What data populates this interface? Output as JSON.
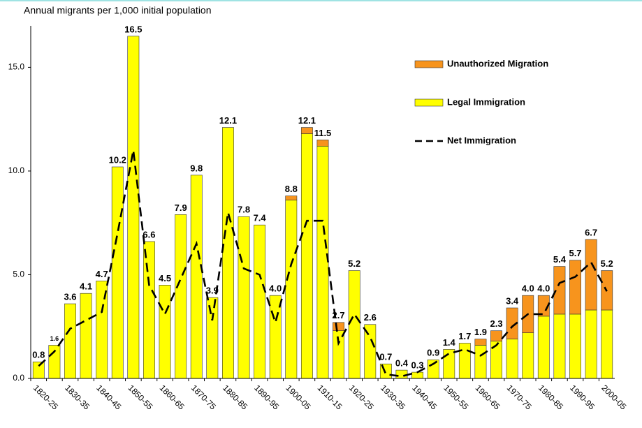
{
  "chart_data": {
    "type": "bar",
    "title": "Annual migrants per 1,000 initial population",
    "categories": [
      "1820-25",
      null,
      "1830-35",
      null,
      "1840-45",
      null,
      "1850-55",
      null,
      "1860-65",
      null,
      "1870-75",
      null,
      "1880-85",
      null,
      "1890-95",
      null,
      "1900-05",
      null,
      "1910-15",
      null,
      "1920-25",
      null,
      "1930-35",
      null,
      "1940-45",
      null,
      "1950-55",
      null,
      "1960-65",
      null,
      "1970-75",
      null,
      "1980-85",
      null,
      "1990-95",
      null,
      "2000-05"
    ],
    "series": [
      {
        "name": "Unauthorized Migration",
        "color": "#f7941d",
        "values": [
          0,
          0,
          0,
          0,
          0,
          0,
          0,
          0,
          0,
          0,
          0,
          0,
          0,
          0,
          0,
          0,
          0.2,
          0.3,
          0.3,
          0.4,
          0,
          0,
          0,
          0,
          0,
          0,
          0,
          0,
          0.3,
          0.5,
          1.5,
          1.8,
          1.0,
          2.3,
          2.6,
          3.4,
          1.9
        ]
      },
      {
        "name": "Legal Immigration",
        "color": "#ffff00",
        "values": [
          0.8,
          1.6,
          3.6,
          4.1,
          4.7,
          10.2,
          16.5,
          6.6,
          4.5,
          7.9,
          9.8,
          3.9,
          12.1,
          7.8,
          7.4,
          4.0,
          8.6,
          11.8,
          11.2,
          2.3,
          5.2,
          2.6,
          0.7,
          0.4,
          0.3,
          0.9,
          1.4,
          1.7,
          1.6,
          1.8,
          1.9,
          2.2,
          3.0,
          3.1,
          3.1,
          3.3,
          3.3
        ]
      },
      {
        "name": "Net Immigration",
        "color": "#000000",
        "type": "line",
        "values": [
          0.6,
          1.3,
          2.4,
          2.8,
          3.2,
          7.0,
          11.0,
          4.5,
          3.1,
          4.8,
          6.5,
          2.8,
          8.0,
          5.3,
          5.0,
          2.7,
          5.5,
          7.6,
          7.6,
          1.7,
          3.1,
          2.0,
          0.2,
          0.1,
          0.3,
          0.7,
          1.2,
          1.4,
          1.1,
          1.6,
          2.5,
          3.1,
          3.1,
          4.6,
          4.9,
          5.6,
          4.2
        ]
      }
    ],
    "value_labels": [
      "0.8",
      "1.6",
      "3.6",
      "4.1",
      "4.7",
      "10.2",
      "16.5",
      "6.6",
      "4.5",
      "7.9",
      "9.8",
      "3.9",
      "12.1",
      "7.8",
      "7.4",
      "4.0",
      "8.8",
      "12.1",
      "11.5",
      "2.7",
      "5.2",
      "2.6",
      "0.7",
      "0.4",
      "0.3",
      "0.9",
      "1.4",
      "1.7",
      "1.9",
      "2.3",
      "3.4",
      "4.0",
      "4.0",
      "5.4",
      "5.7",
      "6.7",
      "5.2"
    ],
    "ylim": [
      0,
      17
    ],
    "yticks": [
      {
        "value": 0,
        "label": "0.0"
      },
      {
        "value": 5,
        "label": "5.0"
      },
      {
        "value": 10,
        "label": "10.0"
      },
      {
        "value": 15,
        "label": "15.0"
      }
    ],
    "legend": "upper right"
  }
}
